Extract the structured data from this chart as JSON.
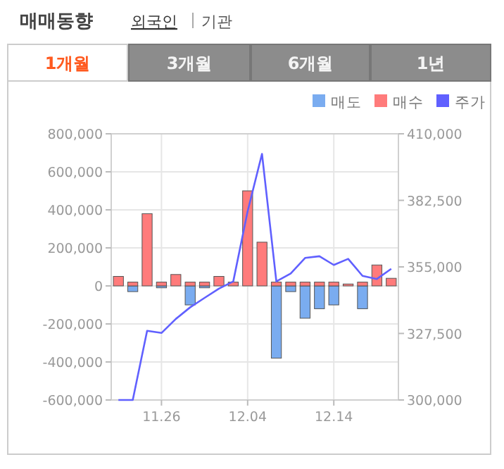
{
  "chart_data": {
    "type": "bar",
    "title": "매매동향",
    "annotations": [
      "외국인",
      "기관",
      "1개월",
      "3개월",
      "6개월",
      "1년"
    ],
    "categories": [
      null,
      null,
      null,
      "11.26",
      null,
      null,
      null,
      null,
      null,
      "12.04",
      null,
      null,
      null,
      null,
      null,
      "12.14",
      null,
      null,
      null,
      null
    ],
    "series": [
      {
        "name": "매도",
        "color": "#7aacf0",
        "values": [
          null,
          -30000,
          null,
          -10000,
          null,
          -100000,
          -10000,
          null,
          null,
          null,
          null,
          -380000,
          -30000,
          -170000,
          -120000,
          -100000,
          null,
          -120000,
          null,
          null
        ]
      },
      {
        "name": "매수",
        "color": "#ff7b7b",
        "values": [
          50000,
          20000,
          380000,
          20000,
          60000,
          20000,
          20000,
          50000,
          20000,
          500000,
          230000,
          20000,
          20000,
          20000,
          20000,
          20000,
          10000,
          20000,
          110000,
          40000
        ]
      },
      {
        "name": "주가",
        "type": "line",
        "axis": "y2",
        "color": "#6060ff",
        "values": [
          300000,
          300000,
          328600,
          327700,
          333500,
          338300,
          342200,
          346000,
          349000,
          378000,
          401700,
          349000,
          352300,
          358700,
          359400,
          355800,
          358300,
          351300,
          350000,
          354200
        ]
      }
    ],
    "ylim": [
      -600000,
      800000
    ],
    "yticks": [
      {
        "value": -600000,
        "label": "-600,000"
      },
      {
        "value": -400000,
        "label": "-400,000"
      },
      {
        "value": -200000,
        "label": "-200,000"
      },
      0,
      {
        "value": 200000,
        "label": "200,000"
      },
      {
        "value": 400000,
        "label": "400,000"
      },
      {
        "value": 600000,
        "label": "600,000"
      },
      {
        "value": 800000,
        "label": "800,000"
      }
    ],
    "y2lim": [
      300000,
      410000
    ],
    "y2ticks": [
      {
        "value": 300000,
        "label": "300,000"
      },
      {
        "value": 327500,
        "label": "327,500"
      },
      {
        "value": 355000,
        "label": "355,000"
      },
      {
        "value": 382500,
        "label": "382,500"
      },
      {
        "value": 410000,
        "label": "410,000"
      }
    ],
    "grid": true,
    "legend": "top right"
  }
}
